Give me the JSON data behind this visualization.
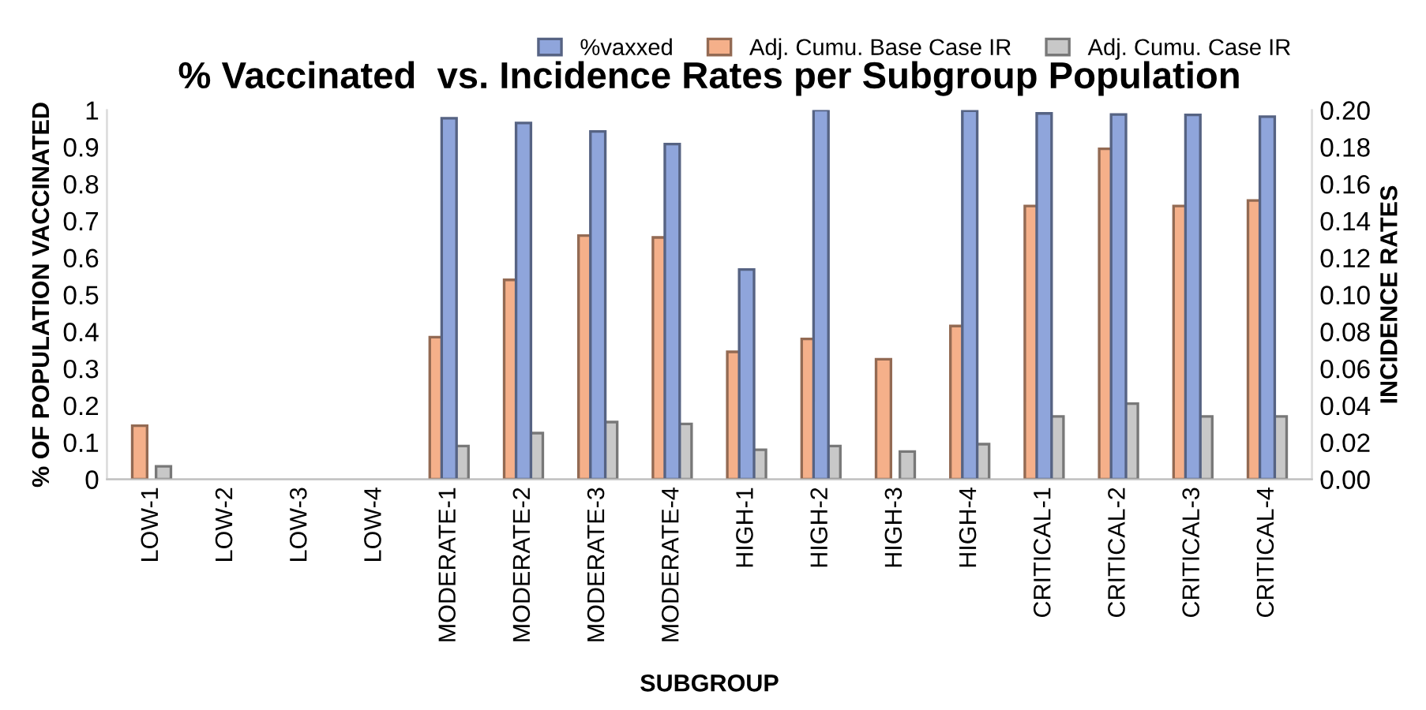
{
  "chart_data": {
    "type": "bar",
    "title": "% Vaccinated  vs. Incidence Rates per Subgroup Population",
    "xlabel": "SUBGROUP",
    "ylabel": "% OF POPULATION VACCINATED",
    "y2label": "INCIDENCE RATES",
    "categories": [
      "LOW-1",
      "LOW-2",
      "LOW-3",
      "LOW-4",
      "MODERATE-1",
      "MODERATE-2",
      "MODERATE-3",
      "MODERATE-4",
      "HIGH-1",
      "HIGH-2",
      "HIGH-3",
      "HIGH-4",
      "CRITICAL-1",
      "CRITICAL-2",
      "CRITICAL-3",
      "CRITICAL-4"
    ],
    "series": [
      {
        "name": "%vaxxed",
        "color": "#8fa5db",
        "values": [
          null,
          null,
          null,
          null,
          0.978,
          0.965,
          0.942,
          0.908,
          0.568,
          1.0,
          null,
          0.998,
          0.991,
          0.988,
          0.987,
          0.982
        ]
      },
      {
        "name": "Adj. Cumu. Base Case IR",
        "color": "#f5b08a",
        "axis": "y2",
        "values": [
          0.029,
          null,
          null,
          null,
          0.077,
          0.108,
          0.132,
          0.131,
          0.069,
          0.076,
          0.065,
          0.083,
          0.148,
          0.179,
          0.148,
          0.151
        ]
      },
      {
        "name": "Adj. Cumu. Case IR",
        "color": "#c8c8c8",
        "axis": "y2",
        "values": [
          0.007,
          null,
          null,
          null,
          0.018,
          0.025,
          0.031,
          0.03,
          0.016,
          0.018,
          0.015,
          0.019,
          0.034,
          0.041,
          0.034,
          0.034
        ]
      }
    ],
    "ylim": [
      0,
      1
    ],
    "yticks": [
      0,
      0.1,
      0.2,
      0.3,
      0.4,
      0.5,
      0.6,
      0.7,
      0.8,
      0.9,
      1
    ],
    "y2lim": [
      0,
      0.2
    ],
    "y2ticks": [
      {
        "value": 0,
        "label": "0.00"
      },
      {
        "value": 0.02,
        "label": "0.02"
      },
      {
        "value": 0.04,
        "label": "0.04"
      },
      {
        "value": 0.06,
        "label": "0.06"
      },
      {
        "value": 0.08,
        "label": "0.08"
      },
      {
        "value": 0.1,
        "label": "0.10"
      },
      {
        "value": 0.12,
        "label": "0.12"
      },
      {
        "value": 0.14,
        "label": "0.14"
      },
      {
        "value": 0.16,
        "label": "0.16"
      },
      {
        "value": 0.18,
        "label": "0.18"
      },
      {
        "value": 0.2,
        "label": "0.20"
      }
    ],
    "grid": false,
    "legend": "top right"
  }
}
